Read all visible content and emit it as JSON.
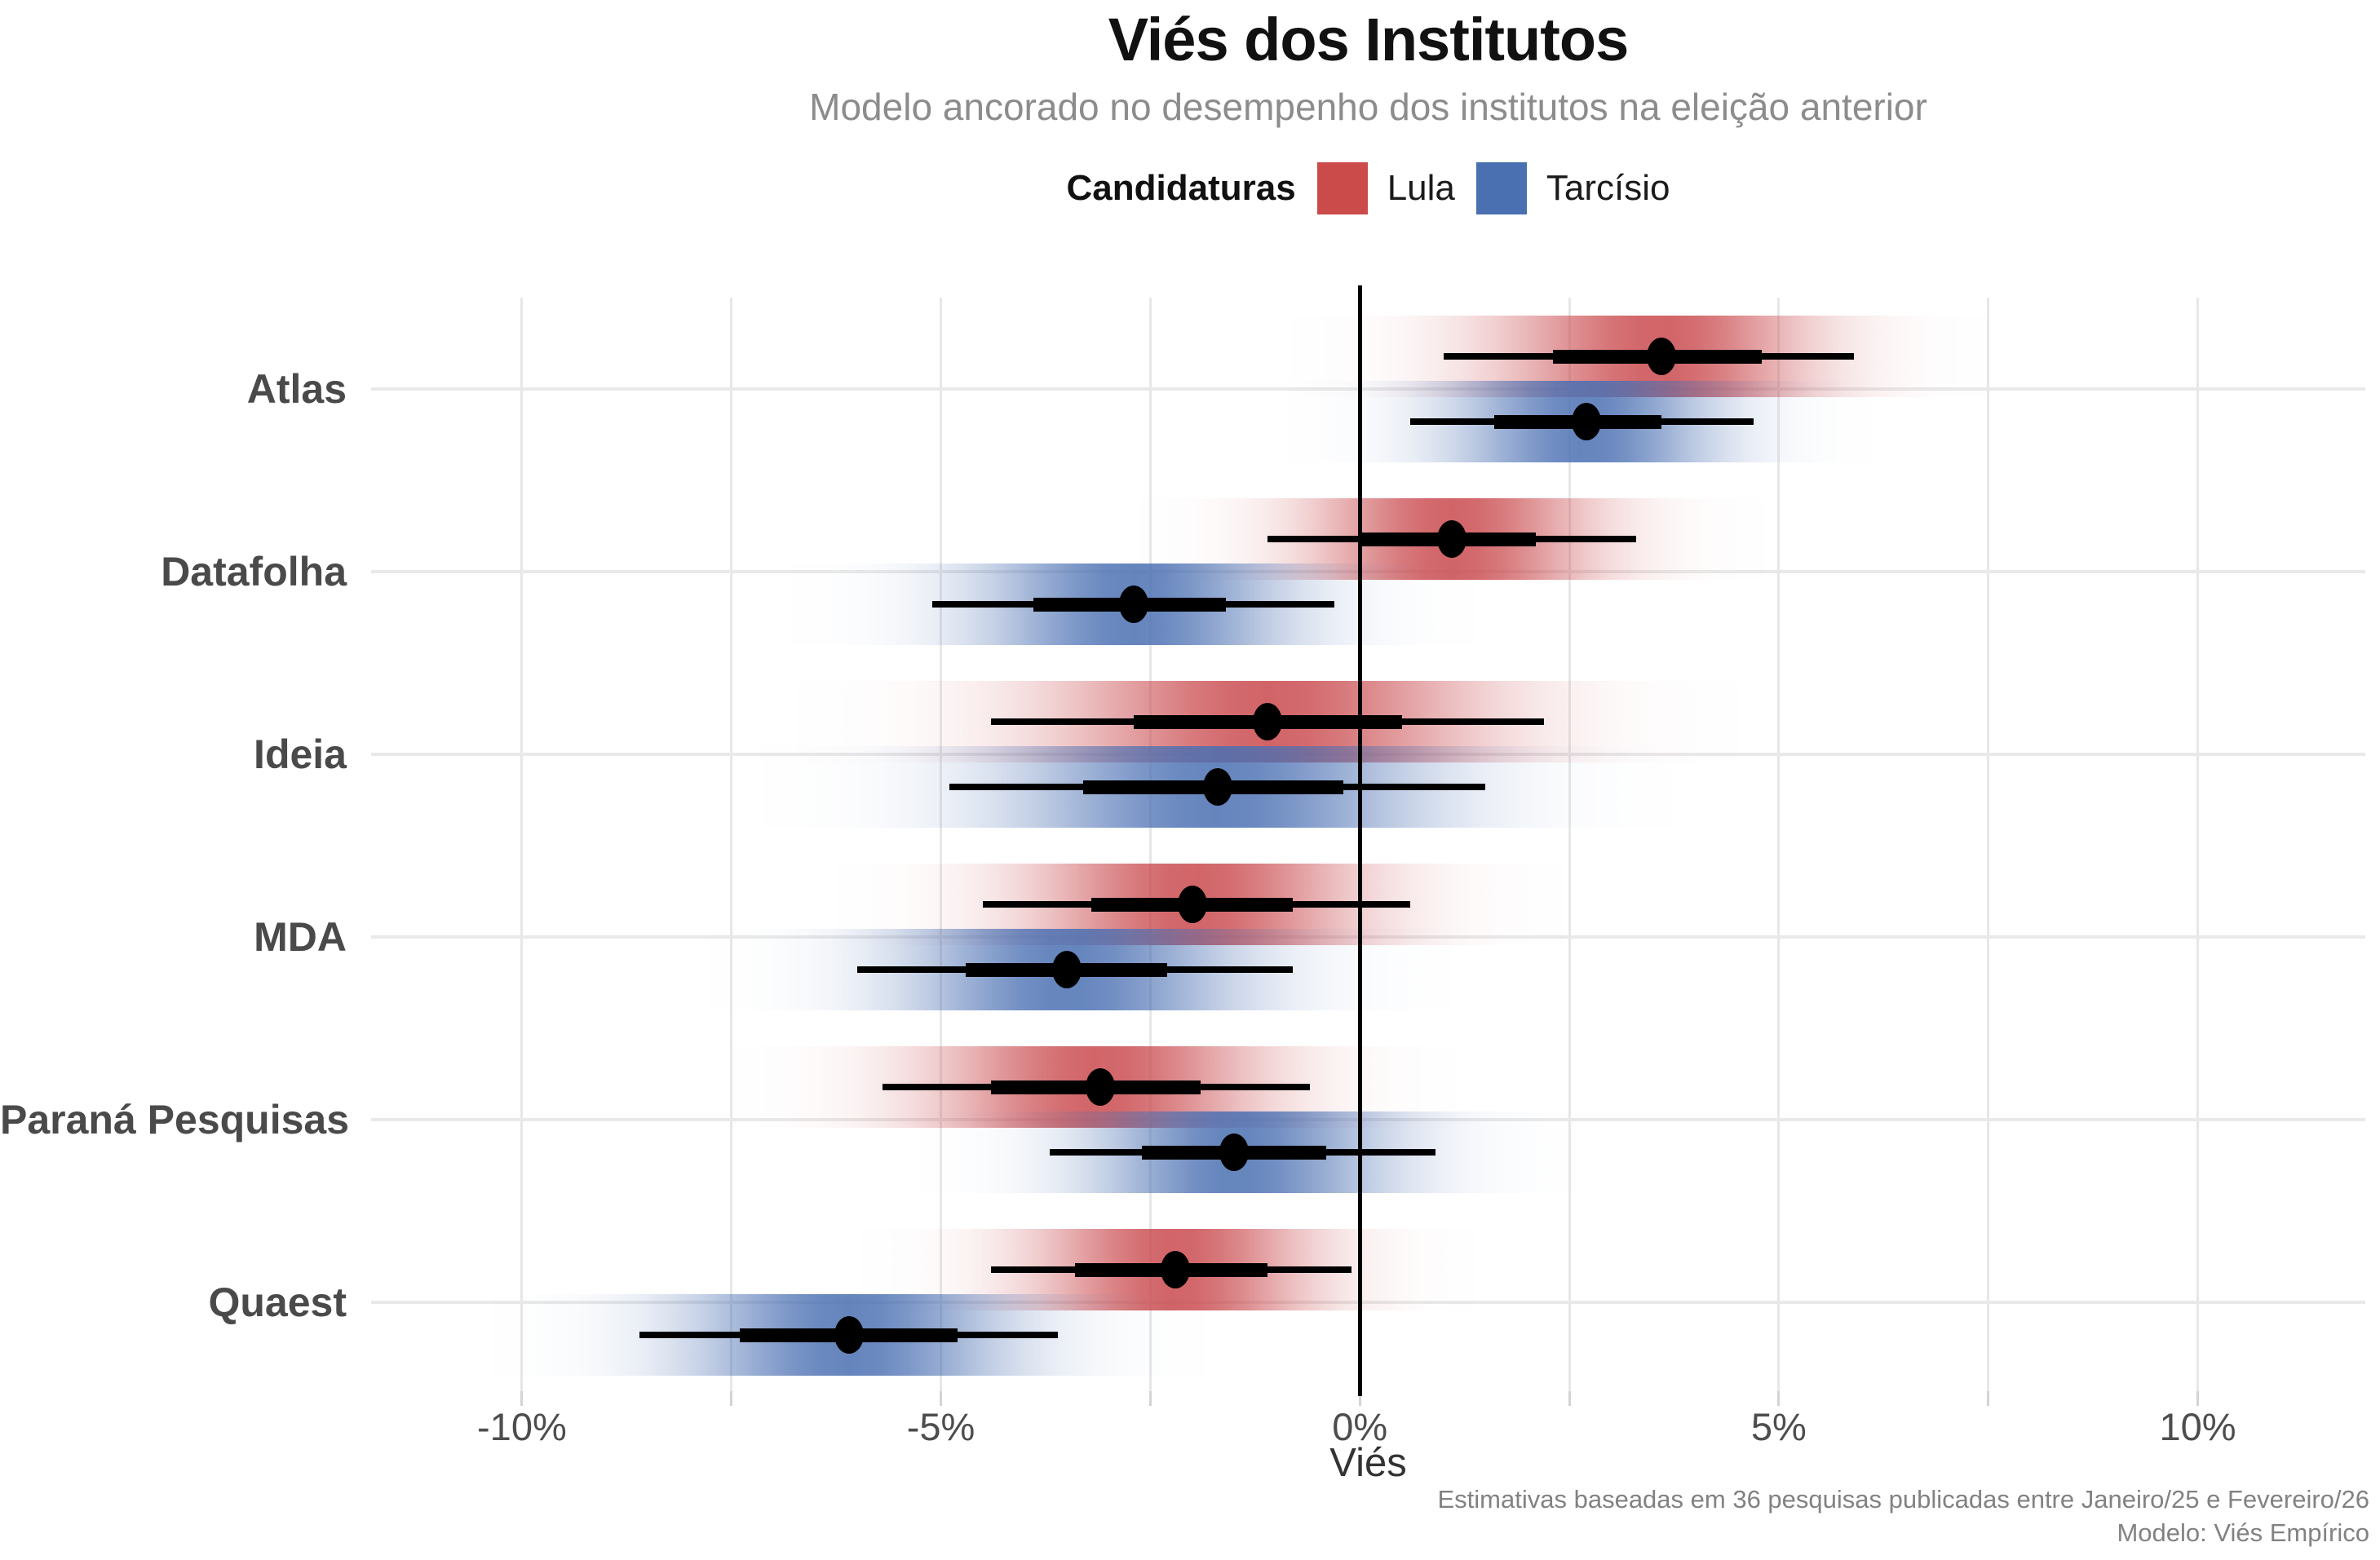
{
  "title": "Viés dos Institutos",
  "subtitle": "Modelo ancorado no desempenho dos institutos na eleição anterior",
  "legend": {
    "title": "Candidaturas",
    "position": "top",
    "items": [
      {
        "label": "Lula",
        "color": "#cb4b4b"
      },
      {
        "label": "Tarcísio",
        "color": "#4a70b2"
      }
    ]
  },
  "caption": [
    "Estimativas baseadas em 36 pesquisas publicadas entre Janeiro/25 e Fevereiro/26",
    "Modelo: Viés Empírico"
  ],
  "colors": {
    "lula": "#cb4b4b",
    "tarcisio": "#4a70b2",
    "interval": "#000000",
    "gridline": "#e7e7e7",
    "reference_line": "#000000"
  },
  "chart_data": {
    "type": "interval",
    "subtype": "gradient-interval-forest-plot",
    "orientation": "horizontal",
    "xlabel": "Viés",
    "x_unit": "%",
    "xlim": [
      -11.8,
      12.0
    ],
    "x_ticks": [
      {
        "value": -10,
        "label": "-10%"
      },
      {
        "value": -5,
        "label": "-5%"
      },
      {
        "value": 0,
        "label": "0%"
      },
      {
        "value": 5,
        "label": "5%"
      },
      {
        "value": 10,
        "label": "10%"
      }
    ],
    "x_gridlines": [
      -10,
      -7.5,
      -5,
      -2.5,
      0,
      2.5,
      5,
      7.5,
      10
    ],
    "reference_line_x": 0,
    "grid": "on",
    "legend_position": "top",
    "series": [
      "Lula",
      "Tarcísio"
    ],
    "institutes": [
      {
        "name": "Atlas",
        "estimates": [
          {
            "candidate": "Lula",
            "median": 3.6,
            "ci66": [
              2.3,
              4.8
            ],
            "ci95": [
              1.0,
              5.9
            ]
          },
          {
            "candidate": "Tarcísio",
            "median": 2.7,
            "ci66": [
              1.6,
              3.6
            ],
            "ci95": [
              0.6,
              4.7
            ]
          }
        ]
      },
      {
        "name": "Datafolha",
        "estimates": [
          {
            "candidate": "Lula",
            "median": 1.1,
            "ci66": [
              0.0,
              2.1
            ],
            "ci95": [
              -1.1,
              3.3
            ]
          },
          {
            "candidate": "Tarcísio",
            "median": -2.7,
            "ci66": [
              -3.9,
              -1.6
            ],
            "ci95": [
              -5.1,
              -0.3
            ]
          }
        ]
      },
      {
        "name": "Ideia",
        "estimates": [
          {
            "candidate": "Lula",
            "median": -1.1,
            "ci66": [
              -2.7,
              0.5
            ],
            "ci95": [
              -4.4,
              2.2
            ]
          },
          {
            "candidate": "Tarcísio",
            "median": -1.7,
            "ci66": [
              -3.3,
              -0.2
            ],
            "ci95": [
              -4.9,
              1.5
            ]
          }
        ]
      },
      {
        "name": "MDA",
        "estimates": [
          {
            "candidate": "Lula",
            "median": -2.0,
            "ci66": [
              -3.2,
              -0.8
            ],
            "ci95": [
              -4.5,
              0.6
            ]
          },
          {
            "candidate": "Tarcísio",
            "median": -3.5,
            "ci66": [
              -4.7,
              -2.3
            ],
            "ci95": [
              -6.0,
              -0.8
            ]
          }
        ]
      },
      {
        "name": "Paraná Pesquisas",
        "estimates": [
          {
            "candidate": "Lula",
            "median": -3.1,
            "ci66": [
              -4.4,
              -1.9
            ],
            "ci95": [
              -5.7,
              -0.6
            ]
          },
          {
            "candidate": "Tarcísio",
            "median": -1.5,
            "ci66": [
              -2.6,
              -0.4
            ],
            "ci95": [
              -3.7,
              0.9
            ]
          }
        ]
      },
      {
        "name": "Quaest",
        "estimates": [
          {
            "candidate": "Lula",
            "median": -2.2,
            "ci66": [
              -3.4,
              -1.1
            ],
            "ci95": [
              -4.4,
              -0.1
            ]
          },
          {
            "candidate": "Tarcísio",
            "median": -6.1,
            "ci66": [
              -7.4,
              -4.8
            ],
            "ci95": [
              -8.6,
              -3.6
            ]
          }
        ]
      }
    ]
  }
}
